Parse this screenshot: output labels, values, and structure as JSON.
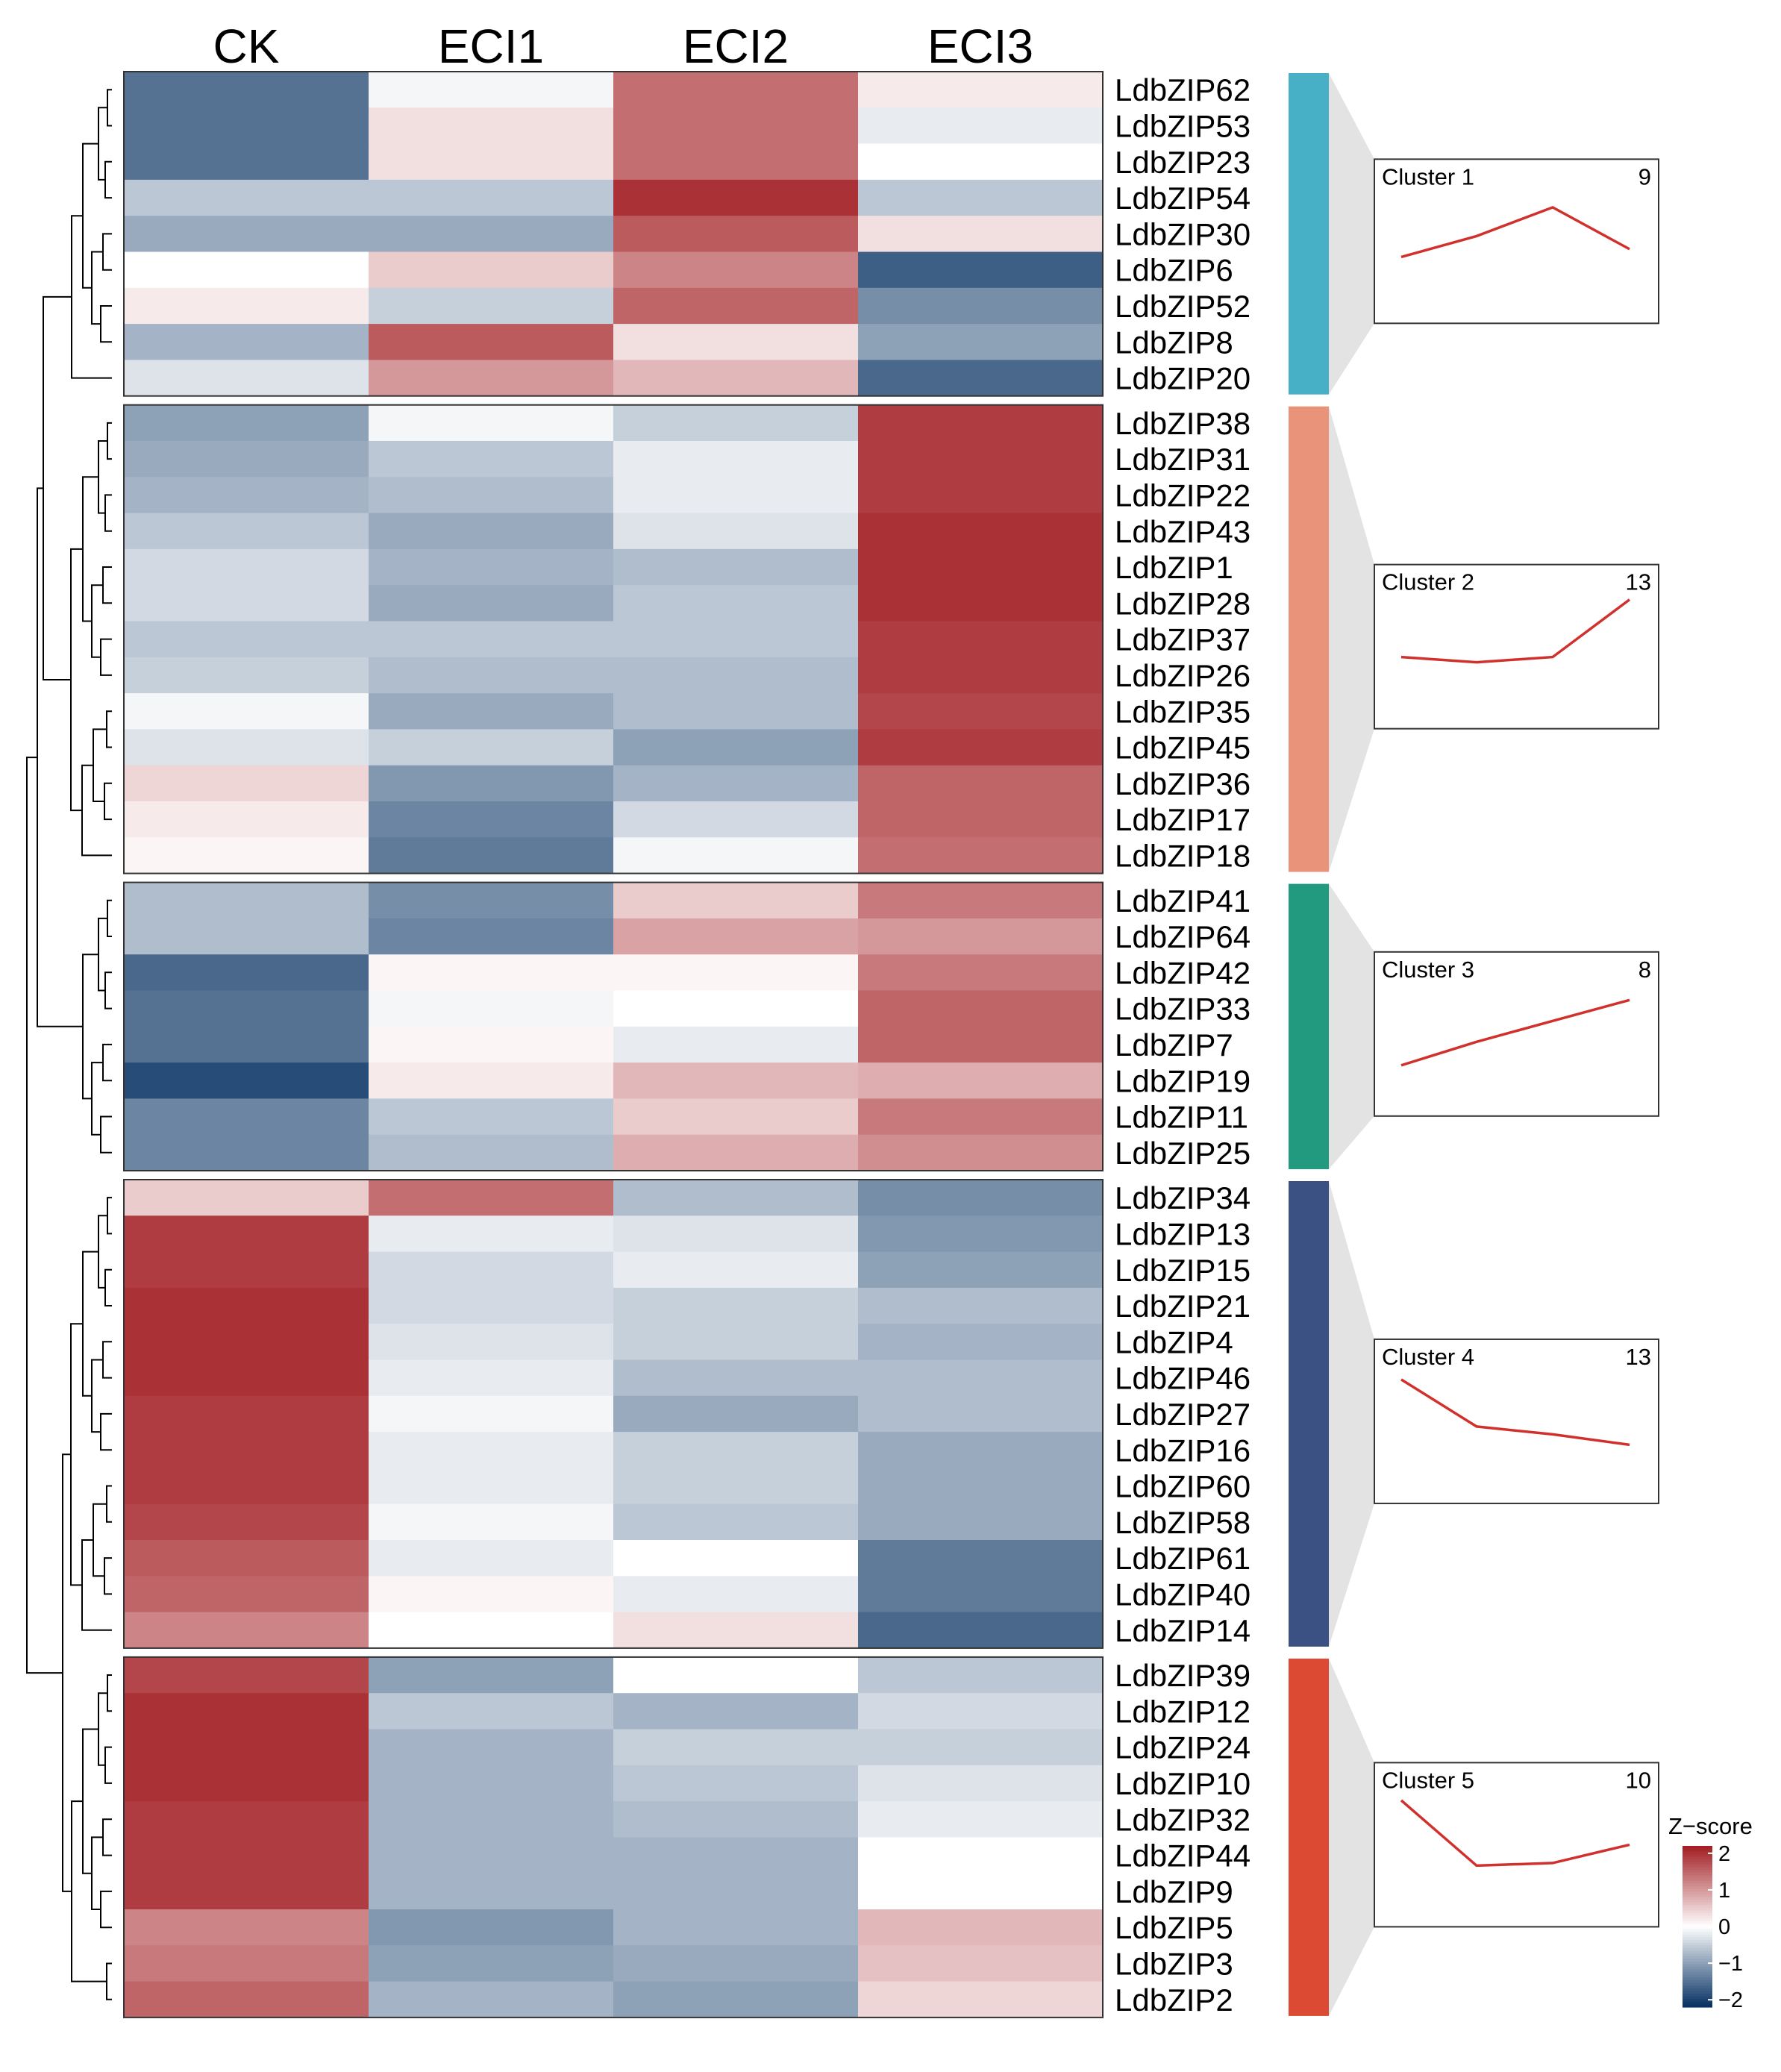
{
  "chart_data": {
    "type": "heatmap",
    "title": "",
    "columns": [
      "CK",
      "ECI1",
      "ECI2",
      "ECI3"
    ],
    "colorbar": {
      "title": "Z−score",
      "ticks": [
        "2",
        "1",
        "0",
        "−1",
        "−2"
      ],
      "tick_values": [
        2,
        1,
        0,
        -1,
        -2
      ],
      "range": [
        -2.2,
        2.2
      ],
      "colors": {
        "low": "#053061",
        "mid": "#ffffff",
        "high": "#a11d22"
      }
    },
    "clusters": [
      {
        "label": "Cluster 1",
        "count": "9",
        "color": "#47b0c7",
        "trend": [
          -0.6,
          0.2,
          1.3,
          -0.3
        ],
        "rows": [
          {
            "gene": "LdbZIP62",
            "values": [
              -1.5,
              -0.1,
              1.4,
              0.2
            ]
          },
          {
            "gene": "LdbZIP53",
            "values": [
              -1.5,
              0.3,
              1.4,
              -0.2
            ]
          },
          {
            "gene": "LdbZIP23",
            "values": [
              -1.5,
              0.3,
              1.4,
              0.0
            ]
          },
          {
            "gene": "LdbZIP54",
            "values": [
              -0.6,
              -0.6,
              2.0,
              -0.6
            ]
          },
          {
            "gene": "LdbZIP30",
            "values": [
              -0.9,
              -0.9,
              1.6,
              0.3
            ]
          },
          {
            "gene": "LdbZIP6",
            "values": [
              0.0,
              0.5,
              1.2,
              -1.7
            ]
          },
          {
            "gene": "LdbZIP52",
            "values": [
              0.2,
              -0.5,
              1.5,
              -1.2
            ]
          },
          {
            "gene": "LdbZIP8",
            "values": [
              -0.8,
              1.6,
              0.3,
              -1.0
            ]
          },
          {
            "gene": "LdbZIP20",
            "values": [
              -0.3,
              1.0,
              0.7,
              -1.6
            ]
          }
        ]
      },
      {
        "label": "Cluster 2",
        "count": "13",
        "color": "#e9937a",
        "trend": [
          -0.4,
          -0.6,
          -0.4,
          1.8
        ],
        "rows": [
          {
            "gene": "LdbZIP38",
            "values": [
              -1.0,
              -0.1,
              -0.5,
              1.9
            ]
          },
          {
            "gene": "LdbZIP31",
            "values": [
              -0.9,
              -0.6,
              -0.2,
              1.9
            ]
          },
          {
            "gene": "LdbZIP22",
            "values": [
              -0.8,
              -0.7,
              -0.2,
              1.9
            ]
          },
          {
            "gene": "LdbZIP43",
            "values": [
              -0.6,
              -0.9,
              -0.3,
              2.0
            ]
          },
          {
            "gene": "LdbZIP1",
            "values": [
              -0.4,
              -0.8,
              -0.7,
              2.0
            ]
          },
          {
            "gene": "LdbZIP28",
            "values": [
              -0.4,
              -0.9,
              -0.6,
              2.0
            ]
          },
          {
            "gene": "LdbZIP37",
            "values": [
              -0.6,
              -0.6,
              -0.6,
              1.9
            ]
          },
          {
            "gene": "LdbZIP26",
            "values": [
              -0.5,
              -0.7,
              -0.7,
              1.9
            ]
          },
          {
            "gene": "LdbZIP35",
            "values": [
              -0.1,
              -0.9,
              -0.7,
              1.8
            ]
          },
          {
            "gene": "LdbZIP45",
            "values": [
              -0.3,
              -0.5,
              -1.0,
              1.9
            ]
          },
          {
            "gene": "LdbZIP36",
            "values": [
              0.4,
              -1.1,
              -0.8,
              1.5
            ]
          },
          {
            "gene": "LdbZIP17",
            "values": [
              0.2,
              -1.3,
              -0.4,
              1.5
            ]
          },
          {
            "gene": "LdbZIP18",
            "values": [
              0.1,
              -1.4,
              -0.1,
              1.4
            ]
          }
        ]
      },
      {
        "label": "Cluster 3",
        "count": "8",
        "color": "#229a7f",
        "trend": [
          -1.2,
          -0.3,
          0.5,
          1.3
        ],
        "rows": [
          {
            "gene": "LdbZIP41",
            "values": [
              -0.7,
              -1.2,
              0.5,
              1.3
            ]
          },
          {
            "gene": "LdbZIP64",
            "values": [
              -0.7,
              -1.3,
              0.9,
              1.0
            ]
          },
          {
            "gene": "LdbZIP42",
            "values": [
              -1.6,
              0.1,
              0.1,
              1.3
            ]
          },
          {
            "gene": "LdbZIP33",
            "values": [
              -1.5,
              -0.1,
              0.0,
              1.5
            ]
          },
          {
            "gene": "LdbZIP7",
            "values": [
              -1.5,
              0.1,
              -0.2,
              1.5
            ]
          },
          {
            "gene": "LdbZIP19",
            "values": [
              -1.9,
              0.2,
              0.7,
              0.8
            ]
          },
          {
            "gene": "LdbZIP11",
            "values": [
              -1.3,
              -0.6,
              0.5,
              1.3
            ]
          },
          {
            "gene": "LdbZIP25",
            "values": [
              -1.3,
              -0.7,
              0.8,
              1.1
            ]
          }
        ]
      },
      {
        "label": "Cluster 4",
        "count": "13",
        "color": "#3b5184",
        "trend": [
          1.6,
          -0.2,
          -0.5,
          -0.9
        ],
        "rows": [
          {
            "gene": "LdbZIP34",
            "values": [
              0.5,
              1.4,
              -0.7,
              -1.2
            ]
          },
          {
            "gene": "LdbZIP13",
            "values": [
              1.9,
              -0.2,
              -0.3,
              -1.1
            ]
          },
          {
            "gene": "LdbZIP15",
            "values": [
              1.9,
              -0.4,
              -0.2,
              -1.0
            ]
          },
          {
            "gene": "LdbZIP21",
            "values": [
              2.0,
              -0.4,
              -0.5,
              -0.7
            ]
          },
          {
            "gene": "LdbZIP4",
            "values": [
              2.0,
              -0.3,
              -0.5,
              -0.8
            ]
          },
          {
            "gene": "LdbZIP46",
            "values": [
              2.0,
              -0.2,
              -0.7,
              -0.7
            ]
          },
          {
            "gene": "LdbZIP27",
            "values": [
              1.9,
              -0.1,
              -0.9,
              -0.7
            ]
          },
          {
            "gene": "LdbZIP16",
            "values": [
              1.9,
              -0.2,
              -0.5,
              -0.9
            ]
          },
          {
            "gene": "LdbZIP60",
            "values": [
              1.9,
              -0.2,
              -0.5,
              -0.9
            ]
          },
          {
            "gene": "LdbZIP58",
            "values": [
              1.8,
              -0.1,
              -0.6,
              -0.9
            ]
          },
          {
            "gene": "LdbZIP61",
            "values": [
              1.6,
              -0.2,
              0.0,
              -1.4
            ]
          },
          {
            "gene": "LdbZIP40",
            "values": [
              1.5,
              0.1,
              -0.2,
              -1.4
            ]
          },
          {
            "gene": "LdbZIP14",
            "values": [
              1.2,
              0.0,
              0.3,
              -1.6
            ]
          }
        ]
      },
      {
        "label": "Cluster 5",
        "count": "10",
        "color": "#dc4a33",
        "trend": [
          1.7,
          -0.8,
          -0.7,
          0.0
        ],
        "rows": [
          {
            "gene": "LdbZIP39",
            "values": [
              1.8,
              -1.0,
              0.0,
              -0.6
            ]
          },
          {
            "gene": "LdbZIP12",
            "values": [
              2.0,
              -0.6,
              -0.8,
              -0.4
            ]
          },
          {
            "gene": "LdbZIP24",
            "values": [
              2.0,
              -0.8,
              -0.5,
              -0.5
            ]
          },
          {
            "gene": "LdbZIP10",
            "values": [
              2.0,
              -0.8,
              -0.6,
              -0.3
            ]
          },
          {
            "gene": "LdbZIP32",
            "values": [
              1.9,
              -0.8,
              -0.7,
              -0.2
            ]
          },
          {
            "gene": "LdbZIP44",
            "values": [
              1.9,
              -0.8,
              -0.8,
              0.0
            ]
          },
          {
            "gene": "LdbZIP9",
            "values": [
              1.9,
              -0.8,
              -0.8,
              0.0
            ]
          },
          {
            "gene": "LdbZIP5",
            "values": [
              1.2,
              -1.1,
              -0.8,
              0.7
            ]
          },
          {
            "gene": "LdbZIP3",
            "values": [
              1.3,
              -1.0,
              -0.9,
              0.6
            ]
          },
          {
            "gene": "LdbZIP2",
            "values": [
              1.5,
              -0.8,
              -1.0,
              0.4
            ]
          }
        ]
      }
    ]
  }
}
